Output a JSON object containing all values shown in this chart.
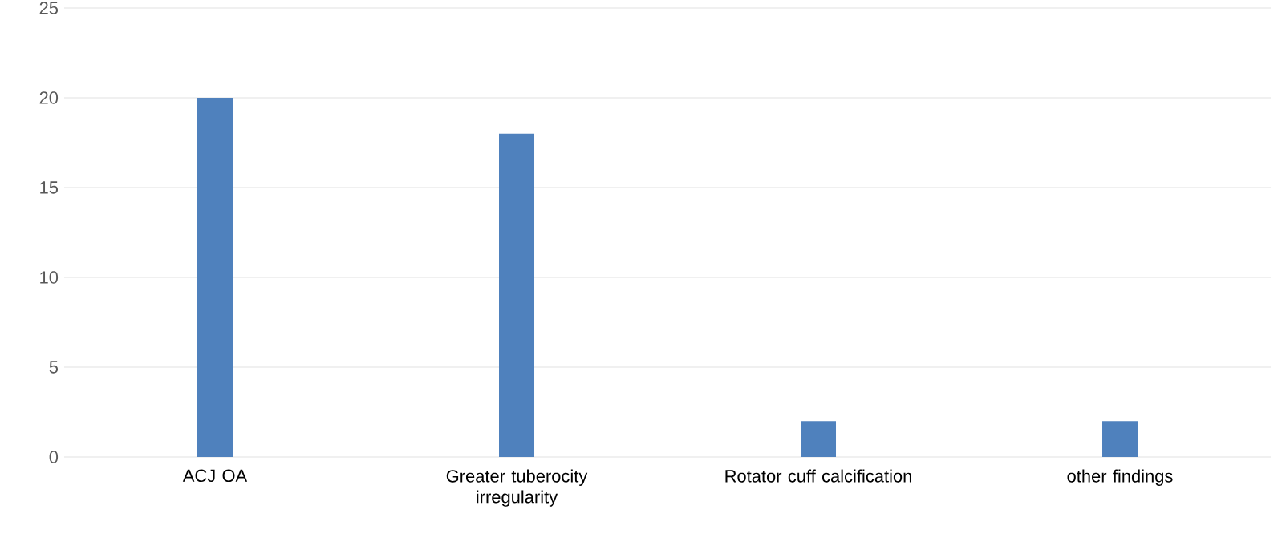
{
  "chart_data": {
    "type": "bar",
    "categories": [
      "ACJ OA",
      "Greater tuberocity irregularity",
      "Rotator cuff calcification",
      "other findings"
    ],
    "values": [
      20,
      18,
      2,
      2
    ],
    "color": "#4f81bd",
    "ylim": [
      0,
      25
    ],
    "yticks": [
      0,
      5,
      10,
      15,
      20,
      25
    ],
    "grid": "y"
  }
}
